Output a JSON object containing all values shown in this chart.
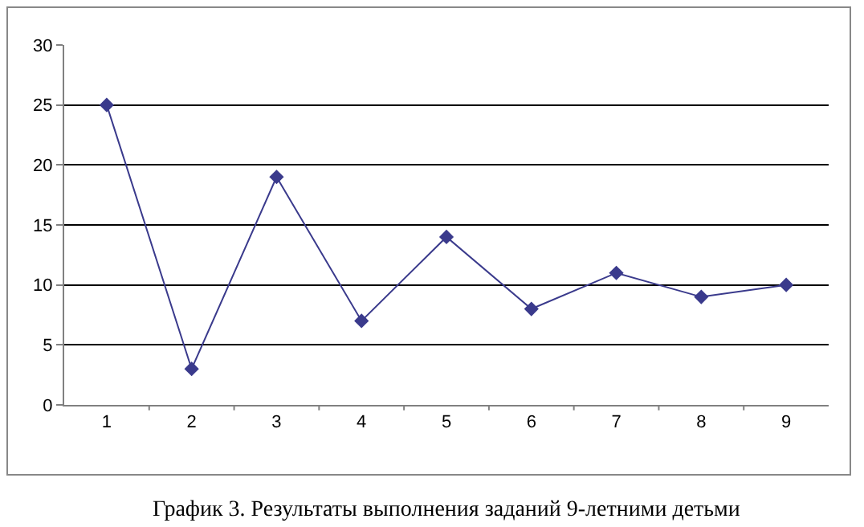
{
  "chart_data": {
    "type": "line",
    "title": "График 3. Результаты выполнения заданий 9-летними детьми",
    "categories": [
      "1",
      "2",
      "3",
      "4",
      "5",
      "6",
      "7",
      "8",
      "9"
    ],
    "series": [
      {
        "color": "#3a3a8c",
        "values": [
          25,
          3,
          19,
          7,
          14,
          8,
          11,
          9,
          10
        ]
      }
    ],
    "ylim": [
      0,
      30
    ],
    "yticks": [
      0,
      5,
      10,
      15,
      20,
      25,
      30
    ],
    "grid": "y",
    "marker": "diamond",
    "line_style": "solid"
  }
}
